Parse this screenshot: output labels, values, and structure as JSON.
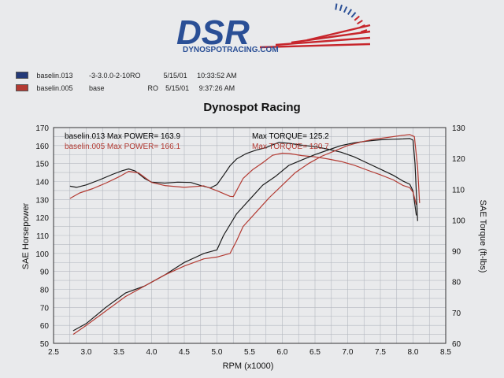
{
  "logo": {
    "wordmark": "DSR",
    "url_text": "DYNOSPOTRACING.COM",
    "colors": {
      "blue": "#2a4f96",
      "red": "#c7262c"
    }
  },
  "header_runs": [
    {
      "file": "baselin.013",
      "desc": "-3-3.0.0-2-10RO",
      "date": "5/15/01",
      "time": "10:33:52 AM",
      "color": "#243a78"
    },
    {
      "file": "baselin.005",
      "desc": "base",
      "code": "RO",
      "date": "5/15/01",
      "time": "9:37:26 AM",
      "color": "#b33a32"
    }
  ],
  "chart_data": {
    "type": "line",
    "title": "Dynospot Racing",
    "xlabel": "RPM (x1000)",
    "ylabel_left": "SAE Horsepower",
    "ylabel_right": "SAE Torque (ft-lbs)",
    "xlim": [
      2.5,
      8.5
    ],
    "ylim_left": [
      50,
      170
    ],
    "ylim_right": [
      60,
      130
    ],
    "x_ticks": [
      "2.5",
      "3.0",
      "3.5",
      "4.0",
      "4.5",
      "5.0",
      "5.5",
      "6.0",
      "6.5",
      "7.0",
      "7.5",
      "8.0",
      "8.5"
    ],
    "y_ticks_left": [
      "50",
      "60",
      "70",
      "80",
      "90",
      "100",
      "110",
      "120",
      "130",
      "140",
      "150",
      "160",
      "170"
    ],
    "y_ticks_right": [
      "60",
      "70",
      "80",
      "90",
      "100",
      "110",
      "120",
      "130"
    ],
    "grid": true,
    "annotations": [
      {
        "text": "baselin.013  Max POWER= 163.9",
        "color": "#111111"
      },
      {
        "text": "Max TORQUE= 125.2",
        "color": "#111111"
      },
      {
        "text": "baselin.005  Max POWER= 166.1",
        "color": "#b33a32"
      },
      {
        "text": "Max TORQUE= 120.7",
        "color": "#b33a32"
      }
    ],
    "series": [
      {
        "name": "baselin.013",
        "measure": "torque",
        "axis": "right",
        "color": "#1a1a1a",
        "x": [
          2.75,
          2.85,
          3.0,
          3.2,
          3.4,
          3.55,
          3.65,
          3.75,
          3.9,
          4.0,
          4.2,
          4.4,
          4.6,
          4.75,
          4.9,
          5.0,
          5.1,
          5.2,
          5.3,
          5.45,
          5.6,
          5.75,
          5.85,
          5.95,
          6.1,
          6.3,
          6.5,
          6.7,
          6.9,
          7.1,
          7.3,
          7.5,
          7.7,
          7.85,
          7.95,
          8.0,
          8.05
        ],
        "y": [
          111,
          110.6,
          111.4,
          113,
          114.8,
          116,
          116.6,
          115.9,
          113.4,
          112.3,
          112,
          112.3,
          112.2,
          111.2,
          110.4,
          111.5,
          114.5,
          117.6,
          119.8,
          121.6,
          122.7,
          123.5,
          124.4,
          125.2,
          124.9,
          124.3,
          123.8,
          123,
          122,
          120.5,
          118.5,
          116.5,
          114.5,
          112.6,
          111.6,
          109.4,
          101.5
        ]
      },
      {
        "name": "baselin.005",
        "measure": "torque",
        "axis": "right",
        "color": "#b33a32",
        "x": [
          2.75,
          2.9,
          3.1,
          3.3,
          3.5,
          3.65,
          3.8,
          4.0,
          4.2,
          4.5,
          4.8,
          5.0,
          5.2,
          5.25,
          5.4,
          5.55,
          5.7,
          5.85,
          6.0,
          6.1,
          6.3,
          6.5,
          6.7,
          6.9,
          7.1,
          7.3,
          7.5,
          7.7,
          7.85,
          7.95,
          8.0,
          8.05
        ],
        "y": [
          107,
          108.8,
          110.2,
          112,
          114,
          115.8,
          115.3,
          112.2,
          111.2,
          110.6,
          111.1,
          109.5,
          107.7,
          107.6,
          113.5,
          116.4,
          118.6,
          121,
          121.7,
          121.6,
          120.9,
          120.5,
          119.8,
          119,
          117.8,
          116.2,
          114.7,
          113,
          111.2,
          110.5,
          109,
          105
        ]
      },
      {
        "name": "baselin.013",
        "measure": "power",
        "axis": "left",
        "color": "#1a1a1a",
        "x": [
          2.8,
          3.0,
          3.3,
          3.6,
          3.9,
          4.2,
          4.5,
          4.8,
          5.0,
          5.1,
          5.3,
          5.5,
          5.7,
          5.9,
          6.1,
          6.3,
          6.5,
          6.7,
          6.9,
          7.1,
          7.3,
          7.5,
          7.7,
          7.85,
          7.95,
          8.0,
          8.03,
          8.07
        ],
        "y": [
          57,
          61,
          70,
          78,
          82,
          88,
          95,
          100,
          102,
          110,
          122,
          130,
          138,
          143,
          149,
          152,
          155,
          157.5,
          160,
          161.5,
          162.5,
          163.2,
          163.5,
          163.7,
          163.9,
          163,
          150,
          118
        ]
      },
      {
        "name": "baselin.005",
        "measure": "power",
        "axis": "left",
        "color": "#b33a32",
        "x": [
          2.8,
          3.0,
          3.3,
          3.6,
          3.9,
          4.2,
          4.5,
          4.8,
          5.0,
          5.2,
          5.3,
          5.4,
          5.6,
          5.8,
          6.0,
          6.2,
          6.4,
          6.6,
          6.8,
          7.0,
          7.2,
          7.4,
          7.6,
          7.8,
          7.95,
          8.02,
          8.07,
          8.1
        ],
        "y": [
          55,
          60,
          68,
          76,
          82,
          88,
          93,
          97,
          98,
          100,
          107,
          115,
          123,
          131,
          138,
          145,
          150,
          154,
          157,
          160,
          162,
          163.5,
          164.5,
          165.5,
          166.1,
          165,
          148,
          128
        ]
      }
    ]
  }
}
